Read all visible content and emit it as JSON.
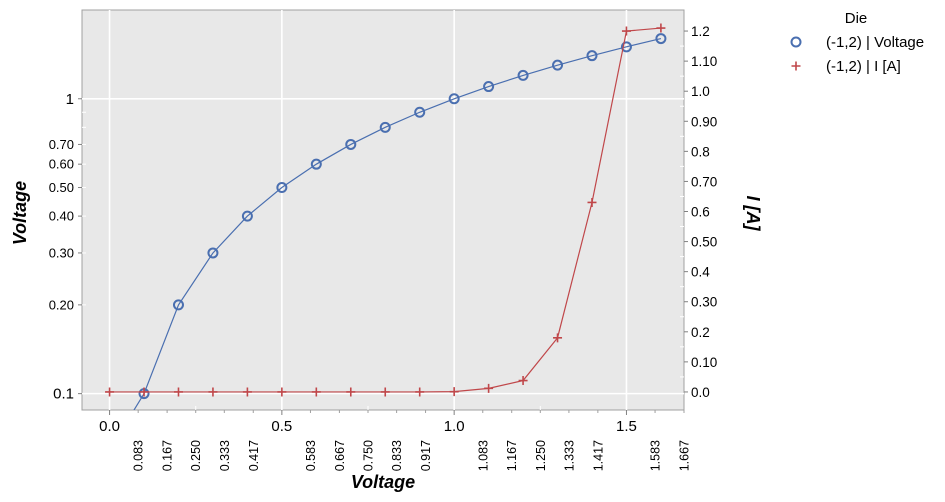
{
  "chart_data": {
    "type": "line",
    "xlabel": "Voltage",
    "ylabel_left": "Voltage",
    "ylabel_right": "I [A]",
    "left_axis_scale": "log",
    "right_axis_scale": "linear",
    "xlim": [
      -0.08,
      1.667
    ],
    "ylim_left": [
      0.088,
      2.0
    ],
    "ylim_right": [
      -0.06,
      1.27
    ],
    "grid": true,
    "legend": {
      "title": "Die",
      "placement": "outside-top-right"
    },
    "x_major_ticks": [
      {
        "value": 0.0,
        "label": "0.0"
      },
      {
        "value": 0.5,
        "label": "0.5"
      },
      {
        "value": 1.0,
        "label": "1.0"
      },
      {
        "value": 1.5,
        "label": "1.5"
      }
    ],
    "x_minor_ticks": [
      {
        "value": 0.083,
        "label": "0.083"
      },
      {
        "value": 0.167,
        "label": "0.167"
      },
      {
        "value": 0.25,
        "label": "0.250"
      },
      {
        "value": 0.333,
        "label": "0.333"
      },
      {
        "value": 0.417,
        "label": "0.417"
      },
      {
        "value": 0.583,
        "label": "0.583"
      },
      {
        "value": 0.667,
        "label": "0.667"
      },
      {
        "value": 0.75,
        "label": "0.750"
      },
      {
        "value": 0.833,
        "label": "0.833"
      },
      {
        "value": 0.917,
        "label": "0.917"
      },
      {
        "value": 1.083,
        "label": "1.083"
      },
      {
        "value": 1.167,
        "label": "1.167"
      },
      {
        "value": 1.25,
        "label": "1.250"
      },
      {
        "value": 1.333,
        "label": "1.333"
      },
      {
        "value": 1.417,
        "label": "1.417"
      },
      {
        "value": 1.583,
        "label": "1.583"
      },
      {
        "value": 1.667,
        "label": "1.667"
      }
    ],
    "y_left_major_ticks": [
      {
        "value": 0.1,
        "label": "0.1"
      },
      {
        "value": 1.0,
        "label": "1"
      }
    ],
    "y_left_minor_ticks": [
      {
        "value": 0.2,
        "label": "0.20"
      },
      {
        "value": 0.3,
        "label": "0.30"
      },
      {
        "value": 0.4,
        "label": "0.40"
      },
      {
        "value": 0.5,
        "label": "0.50"
      },
      {
        "value": 0.6,
        "label": "0.60"
      },
      {
        "value": 0.7,
        "label": "0.70"
      }
    ],
    "y_right_ticks": [
      {
        "value": 0.0,
        "label": "0.0"
      },
      {
        "value": 0.1,
        "label": "0.10"
      },
      {
        "value": 0.2,
        "label": "0.2"
      },
      {
        "value": 0.3,
        "label": "0.30"
      },
      {
        "value": 0.4,
        "label": "0.4"
      },
      {
        "value": 0.5,
        "label": "0.50"
      },
      {
        "value": 0.6,
        "label": "0.6"
      },
      {
        "value": 0.7,
        "label": "0.70"
      },
      {
        "value": 0.8,
        "label": "0.8"
      },
      {
        "value": 0.9,
        "label": "0.90"
      },
      {
        "value": 1.0,
        "label": "1.0"
      },
      {
        "value": 1.1,
        "label": "1.10"
      },
      {
        "value": 1.2,
        "label": "1.2"
      }
    ],
    "series": [
      {
        "name": "(-1,2) | Voltage",
        "axis": "left",
        "marker": "circle",
        "color": "#4a6fb0",
        "x": [
          0.0,
          0.1,
          0.2,
          0.3,
          0.4,
          0.5,
          0.6,
          0.7,
          0.8,
          0.9,
          1.0,
          1.1,
          1.2,
          1.3,
          1.4,
          1.5,
          1.6
        ],
        "y": [
          0.0,
          0.1,
          0.2,
          0.3,
          0.4,
          0.5,
          0.6,
          0.7,
          0.8,
          0.9,
          1.0,
          1.1,
          1.2,
          1.3,
          1.4,
          1.5,
          1.6
        ]
      },
      {
        "name": "(-1,2) | I [A]",
        "axis": "right",
        "marker": "plus",
        "color": "#c0474a",
        "x": [
          0.0,
          0.1,
          0.2,
          0.3,
          0.4,
          0.5,
          0.6,
          0.7,
          0.8,
          0.9,
          1.0,
          1.1,
          1.2,
          1.3,
          1.4,
          1.5,
          1.6
        ],
        "y": [
          0.0,
          0.0,
          0.0,
          0.0,
          0.0,
          0.0,
          0.0,
          0.0,
          0.0,
          0.0,
          0.001,
          0.012,
          0.038,
          0.18,
          0.63,
          1.2,
          1.21
        ]
      }
    ]
  }
}
